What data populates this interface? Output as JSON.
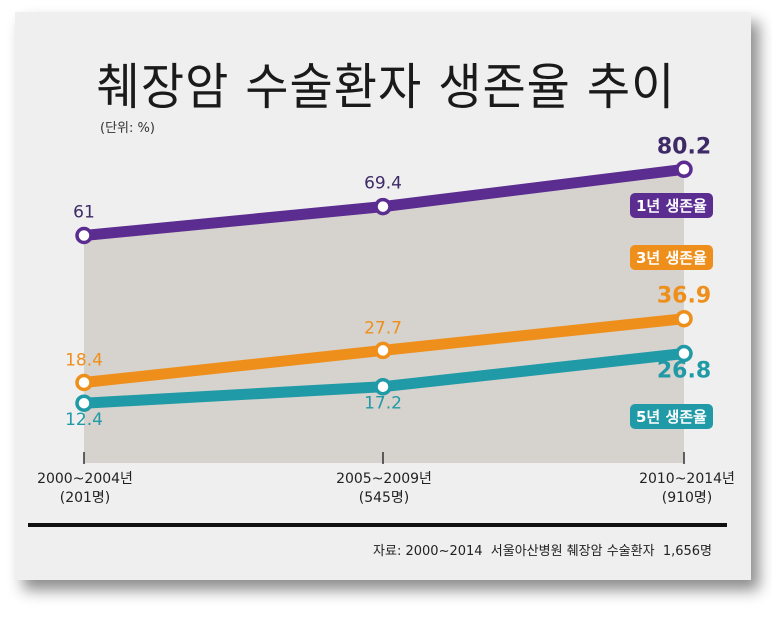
{
  "header": {
    "title": "췌장암 수술환자 생존율 추이",
    "unit": "(단위: %)"
  },
  "footer": {
    "source": "자료: 2000~2014  서울아산병원 췌장암 수술환자  1,656명"
  },
  "colors": {
    "one_year": "#5b2d91",
    "three_year": "#ee8f1c",
    "five_year": "#1f9aa6",
    "area_fill": "#d6d2cd",
    "background": "#efefef"
  },
  "chart_data": {
    "type": "line",
    "title": "췌장암 수술환자 생존율 추이",
    "ylabel": "(단위: %)",
    "xlabel": "",
    "categories": [
      {
        "period": "2000~2004년",
        "patients": "(201명)"
      },
      {
        "period": "2005~2009년",
        "patients": "(545명)"
      },
      {
        "period": "2010~2014년",
        "patients": "(910명)"
      }
    ],
    "ylim": [
      0,
      85
    ],
    "grid": false,
    "series": [
      {
        "name": "1년 생존율",
        "values": [
          61,
          69.4,
          80.2
        ],
        "labels": [
          "61",
          "69.4",
          "80.2"
        ],
        "color": "#5b2d91"
      },
      {
        "name": "3년 생존율",
        "values": [
          18.4,
          27.7,
          36.9
        ],
        "labels": [
          "18.4",
          "27.7",
          "36.9"
        ],
        "color": "#ee8f1c"
      },
      {
        "name": "5년 생존율",
        "values": [
          12.4,
          17.2,
          26.8
        ],
        "labels": [
          "12.4",
          "17.2",
          "26.8"
        ],
        "color": "#1f9aa6"
      }
    ],
    "legend": "inline-right",
    "source": "자료: 2000~2014  서울아산병원 췌장암 수술환자  1,656명"
  }
}
